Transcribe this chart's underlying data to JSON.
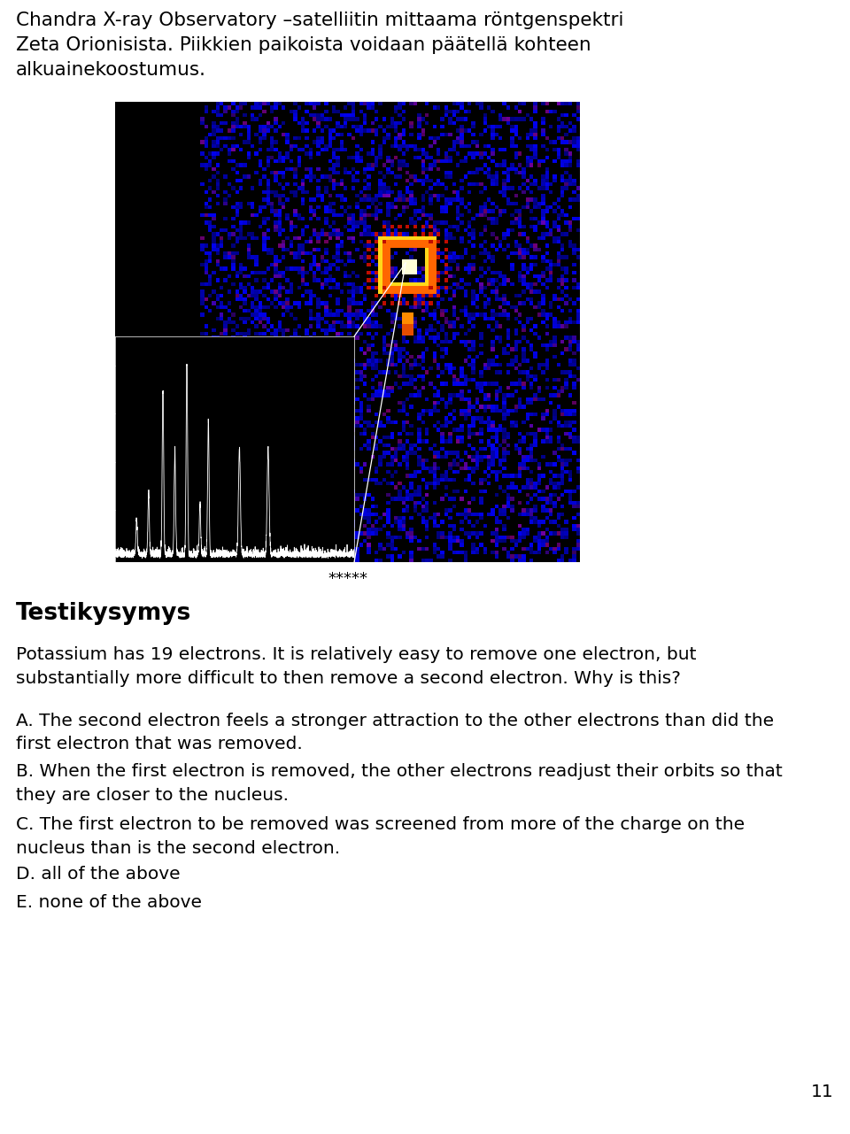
{
  "title_text": "Chandra X-ray Observatory –satelliitin mittaama röntgenspektri\nZeta Orionisista. Piikkien paikoista voidaan päätellä kohteen\nalkuainekoostumus.",
  "separator": "*****",
  "section_title": "Testikysymys",
  "question": "Potassium has 19 electrons. It is relatively easy to remove one electron, but\nsubstantially more difficult to then remove a second electron. Why is this?",
  "option_a": "A. The second electron feels a stronger attraction to the other electrons than did the\nfirst electron that was removed.",
  "option_b": "B. When the first electron is removed, the other electrons readjust their orbits so that\nthey are closer to the nucleus.",
  "option_c": "C. The first electron to be removed was screened from more of the charge on the\nnucleus than is the second electron.",
  "option_d": "D. all of the above",
  "option_e": "E. none of the above",
  "page_number": "11",
  "bg_color": "#ffffff",
  "text_color": "#000000",
  "title_fontsize": 15.5,
  "body_fontsize": 14.5,
  "section_fontsize": 19
}
